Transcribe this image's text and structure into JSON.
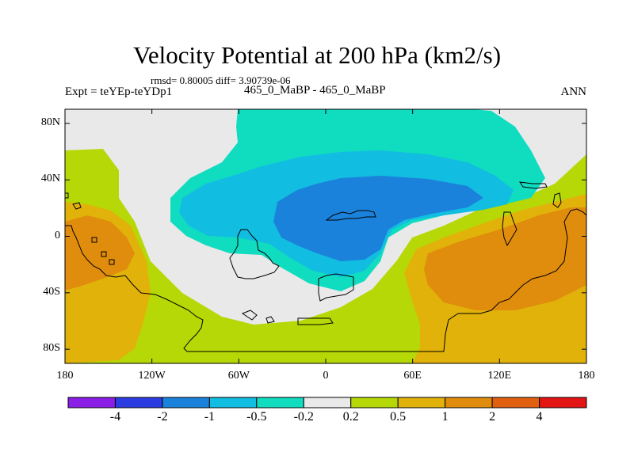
{
  "title": "Velocity Potential at 200 hPa (km2/s)",
  "stats": "rmsd= 0.80005 diff= 3.90739e-06",
  "expt_label": "Expt = teYEp-teYDp1",
  "comparison": "465_0_MaBP - 465_0_MaBP",
  "season": "ANN",
  "lat_ticks": [
    {
      "label": "80N",
      "lat": 80
    },
    {
      "label": "40N",
      "lat": 40
    },
    {
      "label": "0",
      "lat": 0
    },
    {
      "label": "40S",
      "lat": -40
    },
    {
      "label": "80S",
      "lat": -80
    }
  ],
  "lon_ticks": [
    {
      "label": "180",
      "lon": -180
    },
    {
      "label": "120W",
      "lon": -120
    },
    {
      "label": "60W",
      "lon": -60
    },
    {
      "label": "0",
      "lon": 0
    },
    {
      "label": "60E",
      "lon": 60
    },
    {
      "label": "120E",
      "lon": 120
    },
    {
      "label": "180",
      "lon": 180
    }
  ],
  "colorbar": {
    "colors": [
      "#8b1ee6",
      "#2b3ce0",
      "#1b82dc",
      "#11bde0",
      "#10dcc0",
      "#e9e9e9",
      "#b6d806",
      "#e1b20a",
      "#e08c0c",
      "#e06010",
      "#e21414"
    ],
    "labels": [
      "-4",
      "-2",
      "-1",
      "-0.5",
      "-0.2",
      "0.2",
      "0.5",
      "1",
      "2",
      "4"
    ]
  },
  "colors": {
    "cyan_fill": "#10dcc0",
    "sky_fill": "#11bde0",
    "blue_fill": "#1b82dc",
    "neutral_fill": "#e9e9e9",
    "lime_fill": "#b6d806",
    "gold_fill": "#e1b20a",
    "orange_fill": "#e08c0c"
  }
}
